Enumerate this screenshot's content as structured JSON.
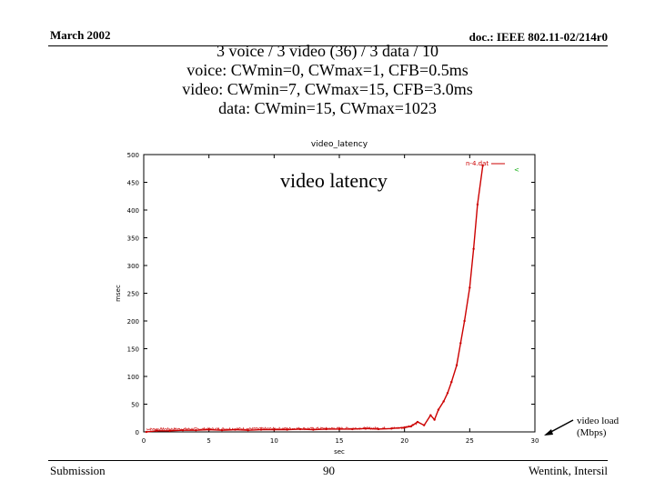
{
  "header": {
    "date": "March 2002",
    "doc": "doc.: IEEE 802.11-02/214r0"
  },
  "subtitle": {
    "line1": "3 voice / 3 video (36) / 3 data / 10",
    "line2": "voice: CWmin=0, CWmax=1, CFB=0.5ms",
    "line3": "video: CWmin=7, CWmax=15, CFB=3.0ms",
    "line4": "data: CWmin=15, CWmax=1023"
  },
  "footer": {
    "left": "Submission",
    "center": "90",
    "right": "Wentink, Intersil"
  },
  "callout": {
    "line1": "video load",
    "line2": "(Mbps)"
  },
  "chart_data": {
    "type": "line",
    "title": "video_latency",
    "overlay_label": "video latency",
    "xlabel": "sec",
    "ylabel": "msec",
    "xlim": [
      0,
      30
    ],
    "ylim": [
      0,
      500
    ],
    "xticks": [
      0,
      5,
      10,
      15,
      20,
      25,
      30
    ],
    "yticks": [
      0,
      50,
      100,
      150,
      200,
      250,
      300,
      350,
      400,
      450,
      500
    ],
    "legend": "top-right",
    "series": [
      {
        "name": "n-4.dat",
        "color": "#cc0000",
        "x": [
          0.2,
          1,
          2,
          3,
          4,
          5,
          6,
          7,
          8,
          9,
          10,
          11,
          12,
          13,
          14,
          15,
          16,
          17,
          18,
          19,
          20,
          20.5,
          21,
          21.5,
          22,
          22.3,
          22.6,
          23,
          23.3,
          23.6,
          24,
          24.3,
          24.6,
          25,
          25.3,
          25.6,
          26
        ],
        "y": [
          0,
          2,
          2,
          3,
          3,
          4,
          3,
          4,
          3,
          4,
          4,
          4,
          5,
          4,
          5,
          5,
          5,
          6,
          5,
          6,
          8,
          10,
          18,
          12,
          30,
          22,
          40,
          55,
          70,
          90,
          120,
          160,
          200,
          260,
          330,
          410,
          480
        ]
      },
      {
        "name": "",
        "color": "#00aa00",
        "x": [],
        "y": []
      }
    ]
  }
}
